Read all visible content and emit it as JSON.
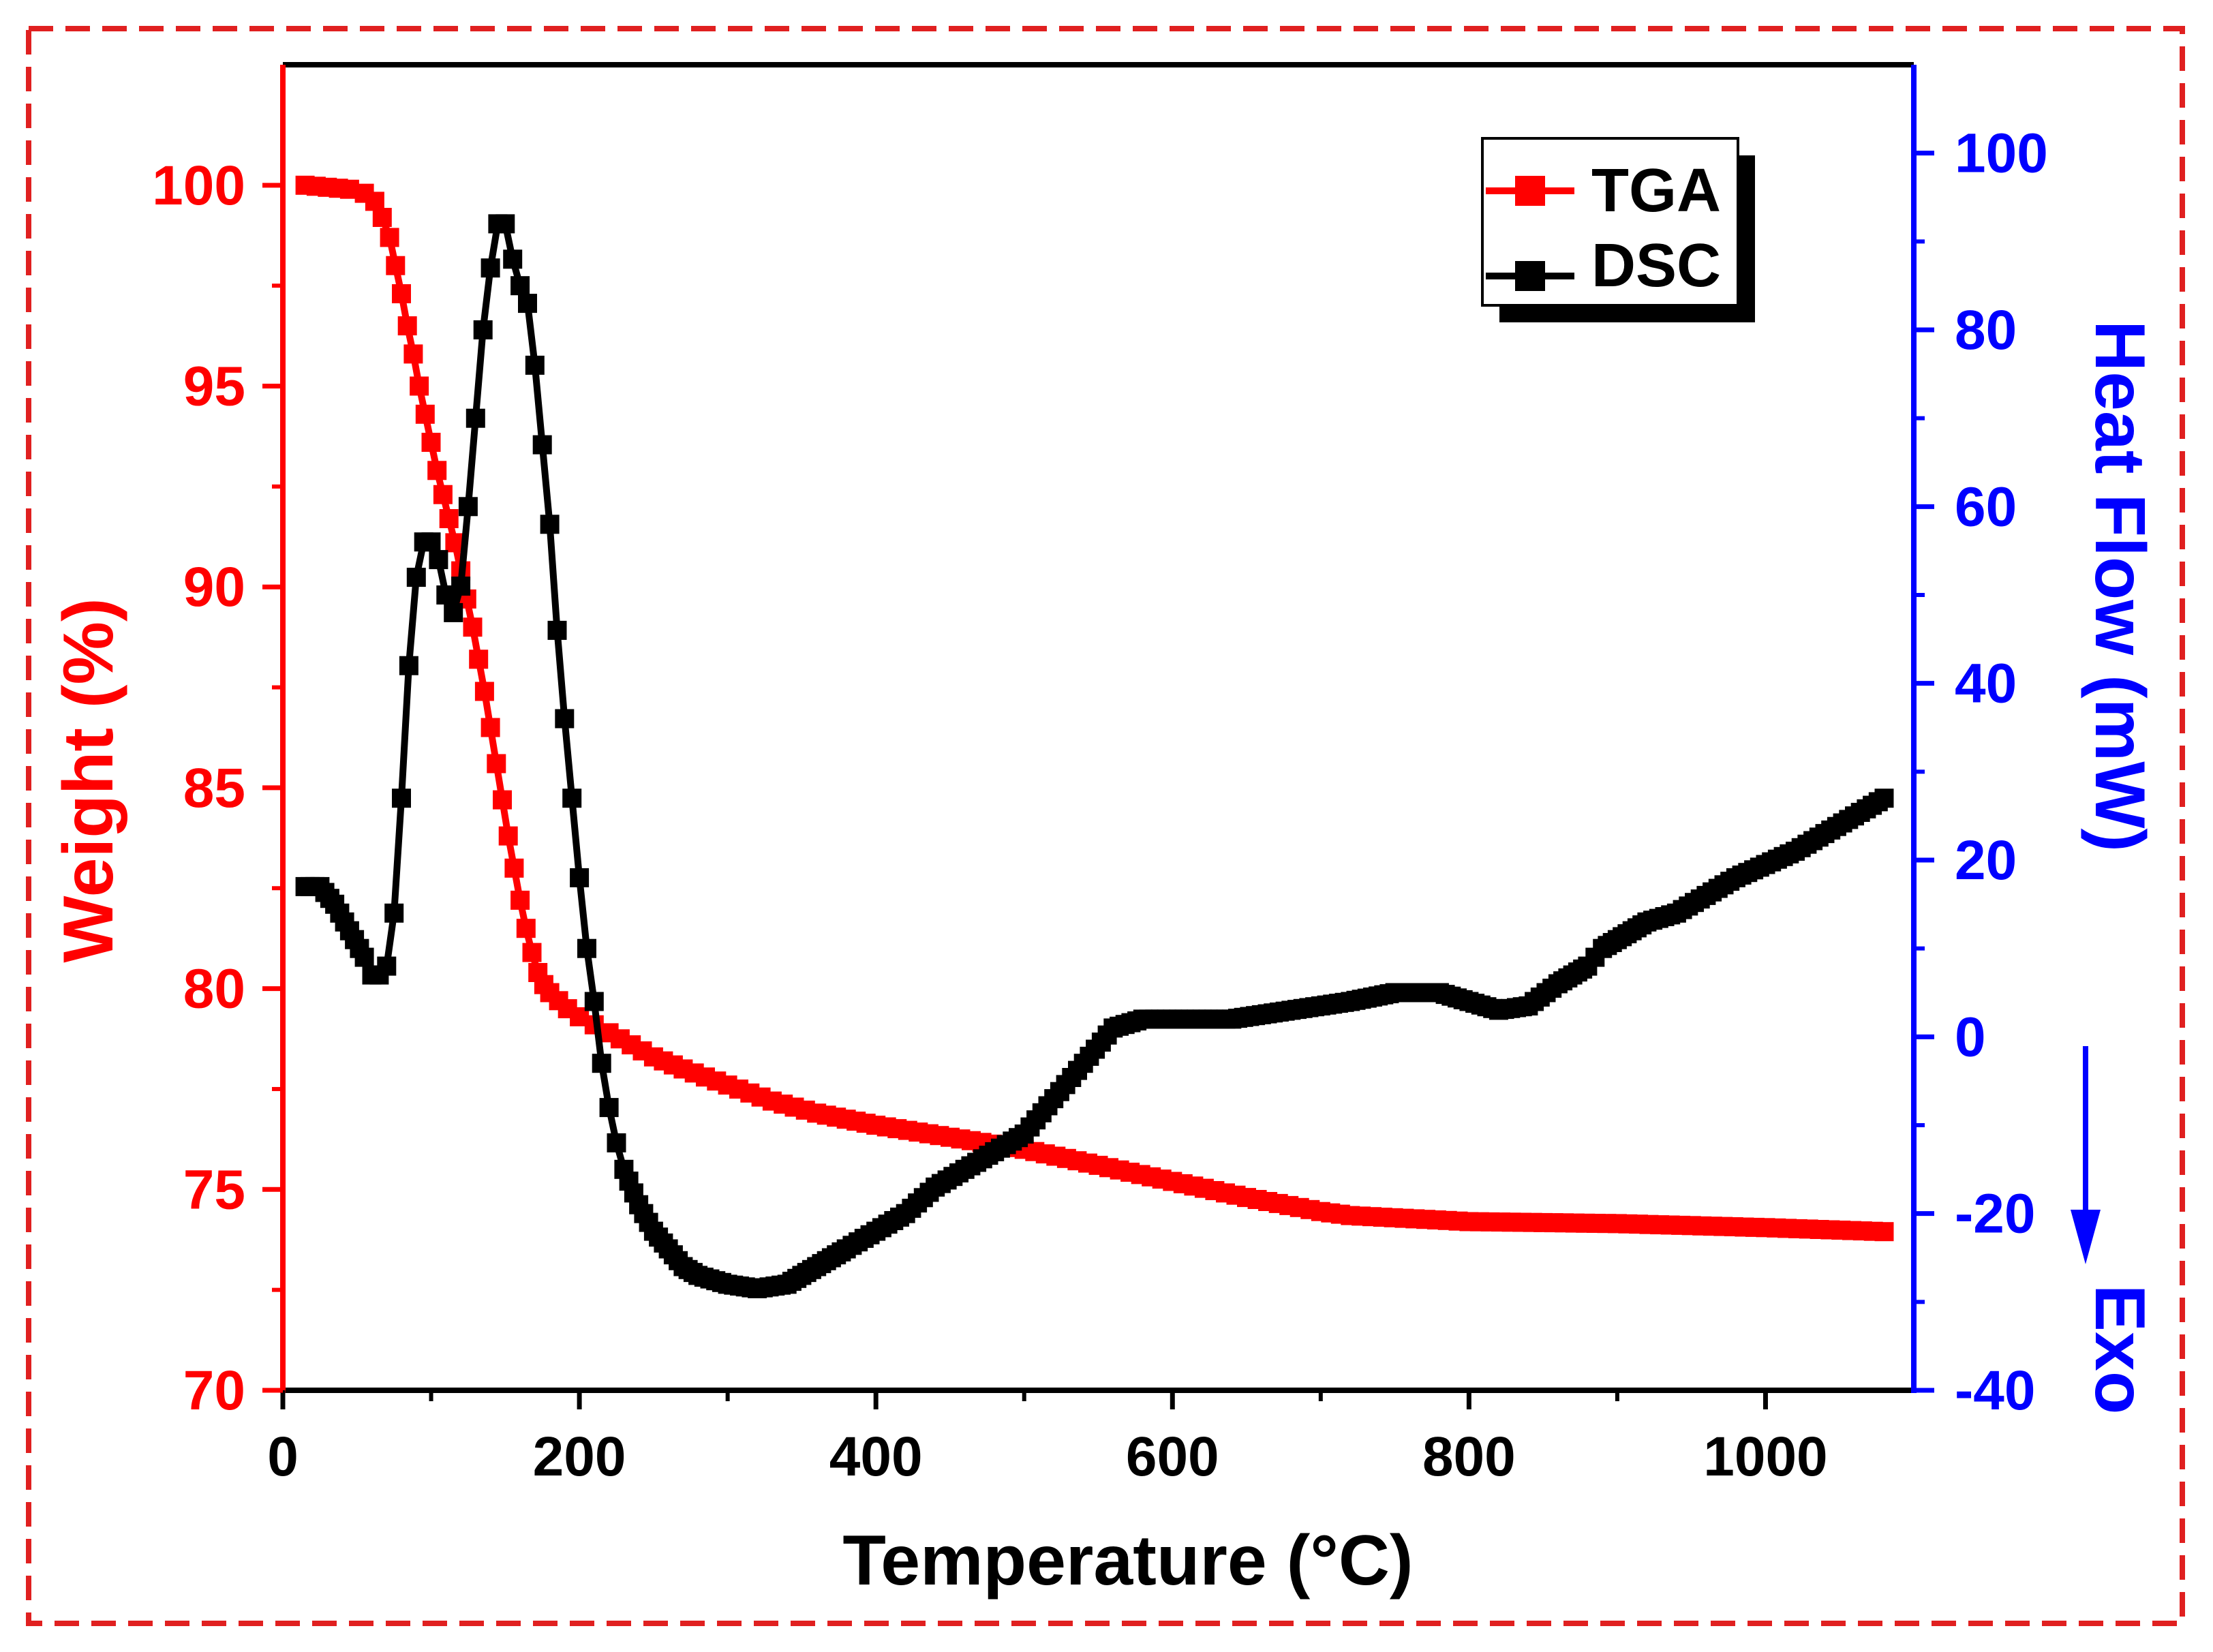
{
  "chart_data": {
    "type": "line",
    "xlabel": "Temperature (°C)",
    "ylabel_left": "Weight (%)",
    "ylabel_right": "Heat Flow (mW)",
    "annotation": "Exo",
    "xlim": [
      0,
      1100
    ],
    "ylim_left": [
      70,
      103
    ],
    "ylim_right": [
      -40,
      110
    ],
    "x_ticks": [
      0,
      200,
      400,
      600,
      800,
      1000
    ],
    "y_left_ticks": [
      70,
      75,
      80,
      85,
      90,
      95,
      100
    ],
    "y_right_ticks": [
      -40,
      -20,
      0,
      20,
      40,
      60,
      80,
      100
    ],
    "legend_position": "top-right",
    "colors": {
      "tga": "#ff0000",
      "dsc": "#000000",
      "left_axis": "#ff0000",
      "right_axis": "#0000ff",
      "frame": "#000000",
      "border": "#e02020"
    },
    "series": [
      {
        "name": "TGA",
        "axis": "left",
        "color": "#ff0000",
        "x": [
          15,
          30,
          45,
          55,
          62,
          67,
          72,
          76,
          80,
          84,
          88,
          92,
          96,
          100,
          104,
          108,
          112,
          116,
          120,
          124,
          128,
          132,
          136,
          140,
          144,
          148,
          152,
          156,
          160,
          164,
          168,
          172,
          176,
          180,
          186,
          192,
          200,
          210,
          220,
          235,
          250,
          270,
          300,
          330,
          360,
          400,
          450,
          500,
          550,
          600,
          650,
          700,
          720,
          800,
          900,
          1000,
          1080
        ],
        "y": [
          100,
          99.95,
          99.9,
          99.8,
          99.6,
          99.2,
          98.7,
          98.0,
          97.3,
          96.5,
          95.8,
          95.0,
          94.3,
          93.6,
          92.9,
          92.3,
          91.7,
          91.1,
          90.4,
          89.7,
          89.0,
          88.2,
          87.4,
          86.5,
          85.6,
          84.7,
          83.8,
          83.0,
          82.2,
          81.5,
          80.9,
          80.4,
          80.1,
          79.9,
          79.7,
          79.5,
          79.3,
          79.1,
          78.9,
          78.6,
          78.3,
          78.0,
          77.6,
          77.2,
          76.9,
          76.6,
          76.3,
          76.0,
          75.6,
          75.2,
          74.8,
          74.45,
          74.35,
          74.2,
          74.15,
          74.05,
          73.95
        ]
      },
      {
        "name": "DSC",
        "axis": "right",
        "color": "#000000",
        "x": [
          15,
          25,
          35,
          45,
          55,
          60,
          65,
          70,
          75,
          80,
          85,
          90,
          95,
          100,
          105,
          110,
          115,
          120,
          125,
          130,
          135,
          140,
          145,
          150,
          155,
          160,
          165,
          170,
          175,
          180,
          185,
          190,
          195,
          200,
          205,
          210,
          215,
          220,
          225,
          230,
          240,
          250,
          260,
          270,
          280,
          300,
          320,
          340,
          350,
          360,
          370,
          380,
          400,
          420,
          440,
          460,
          480,
          500,
          520,
          540,
          560,
          580,
          600,
          620,
          640,
          660,
          680,
          700,
          720,
          750,
          780,
          800,
          820,
          840,
          860,
          870,
          880,
          885,
          890,
          900,
          910,
          920,
          940,
          960,
          980,
          1000,
          1020,
          1040,
          1060,
          1080
        ],
        "y": [
          17,
          17,
          15,
          12,
          9,
          7,
          7,
          8,
          14,
          27,
          42,
          52,
          56,
          56,
          54,
          50,
          48,
          51,
          60,
          70,
          80,
          87,
          92,
          92,
          88,
          85,
          83,
          76,
          67,
          58,
          46,
          36,
          27,
          18,
          10,
          4,
          -3,
          -8,
          -12,
          -15,
          -19,
          -22,
          -24,
          -26,
          -27,
          -28,
          -28.5,
          -28,
          -27,
          -26,
          -25,
          -24,
          -22,
          -20,
          -17,
          -15,
          -13,
          -11,
          -7,
          -3,
          1,
          2,
          2,
          2,
          2,
          2.5,
          3,
          3.5,
          4,
          5,
          5,
          4,
          3,
          3.5,
          6,
          7,
          8,
          9,
          10,
          11,
          12,
          13,
          14,
          16,
          18,
          19.5,
          21,
          23,
          25,
          27
        ]
      }
    ]
  }
}
